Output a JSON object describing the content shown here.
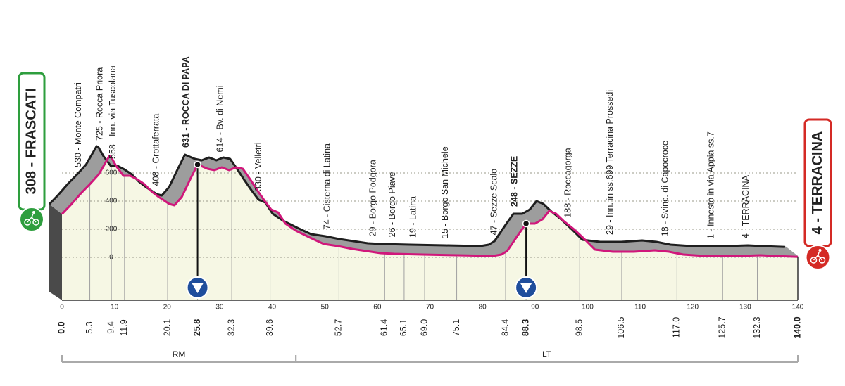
{
  "chart_data": {
    "type": "elevation_profile",
    "start": {
      "label": "308 - FRASCATI",
      "km": {
        "value": 0,
        "label": "0.0"
      },
      "color": "#2e9e3e"
    },
    "finish": {
      "label": "4 - TERRACINA",
      "km": {
        "value": 140,
        "label": "140.0"
      },
      "color": "#d42a25"
    },
    "xlim": [
      0,
      140
    ],
    "xticks": [
      0,
      10,
      20,
      30,
      40,
      50,
      60,
      70,
      80,
      90,
      100,
      110,
      120,
      130,
      140
    ],
    "ylim": [
      0,
      600
    ],
    "yticks": [
      0,
      200,
      400,
      600
    ],
    "grid": true,
    "profile": {
      "color": "#d0177b",
      "x": [
        0,
        1.6,
        3.6,
        5.3,
        7,
        9,
        9.4,
        10.3,
        11.7,
        13,
        14.3,
        15.7,
        17,
        18.4,
        20.4,
        21.4,
        22.8,
        24.4,
        25.8,
        27.7,
        29,
        30.4,
        31.8,
        33.1,
        34.4,
        35.8,
        37.1,
        38.5,
        39.8,
        41.1,
        42.5,
        44.5,
        47.2,
        49.8,
        52.5,
        55.2,
        57.9,
        60.6,
        63.2,
        68.6,
        75.3,
        82,
        83.6,
        84.7,
        86.7,
        88.3,
        90,
        91.4,
        92.7,
        94,
        95.4,
        97.4,
        99.4,
        101.4,
        104.8,
        108.8,
        112.8,
        115.5,
        118.2,
        122.2,
        128.9,
        132.9,
        135.6,
        140
      ],
      "values": [
        308,
        370,
        455,
        520,
        590,
        720,
        710,
        650,
        580,
        580,
        555,
        520,
        470,
        430,
        380,
        370,
        430,
        555,
        660,
        630,
        620,
        640,
        620,
        640,
        630,
        555,
        480,
        405,
        340,
        320,
        240,
        190,
        140,
        95,
        80,
        60,
        45,
        30,
        25,
        20,
        15,
        10,
        20,
        45,
        155,
        240,
        240,
        270,
        330,
        310,
        260,
        200,
        130,
        55,
        40,
        40,
        50,
        40,
        20,
        10,
        10,
        15,
        10,
        4
      ]
    },
    "waypoints": [
      {
        "label": "530 - Monte Compatri",
        "km": 5.3
      },
      {
        "label": "725 - Rocca Priora",
        "km": 9.4
      },
      {
        "label": "558 - Inn. via Tuscolana",
        "km": 11.9
      },
      {
        "label": "408 - Grottaferrata",
        "km": 20.1
      },
      {
        "label": "631 - ROCCA DI PAPA",
        "km": 25.8,
        "bold": true,
        "marker": true
      },
      {
        "label": "614 - Bv. di Nemi",
        "km": 32.3
      },
      {
        "label": "330 - Velletri",
        "km": 39.6
      },
      {
        "label": "74 - Cisterna di Latina",
        "km": 52.7
      },
      {
        "label": "29 - Borgo Podgora",
        "km": 61.4
      },
      {
        "label": "26 - Borgo Piave",
        "km": 65.1
      },
      {
        "label": "19 - Latina",
        "km": {
          "value": 69,
          "label": "69.0"
        }
      },
      {
        "label": "15 - Borgo San Michele",
        "km": 75.1
      },
      {
        "label": "47 - Sezze Scalo",
        "km": 84.4
      },
      {
        "label": "248 - SEZZE",
        "km": 88.3,
        "bold": true,
        "marker": true
      },
      {
        "label": "188 - Roccagorga",
        "km": 98.5
      },
      {
        "label": "29 - Inn. in ss.699 Terracina Prossedi",
        "km": 106.5
      },
      {
        "label": "18 - Svinc. di Capocroce",
        "km": {
          "value": 117,
          "label": "117.0"
        }
      },
      {
        "label": "1 - Innesto in via Appia ss.7",
        "km": 125.7
      },
      {
        "label": "4 - TERRACINA",
        "km": 132.3
      }
    ],
    "regions": [
      {
        "name": "RM",
        "from": 0,
        "to": 44.5
      },
      {
        "name": "LT",
        "from": 44.5,
        "to": 140
      }
    ],
    "marker_color": "#1f4e9c"
  }
}
